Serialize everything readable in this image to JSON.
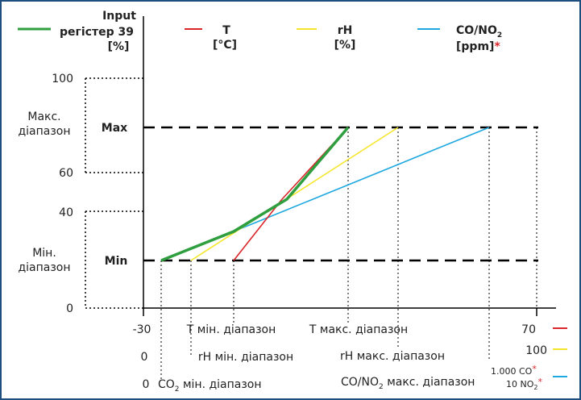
{
  "legend": {
    "input": {
      "line1": "Input",
      "line2": "регістер 39",
      "line3": "[%]"
    },
    "t": {
      "line1": "T",
      "line2": "[°C]"
    },
    "rh": {
      "line1": "rH",
      "line2": "[%]"
    },
    "co_no2": {
      "line1_main": "CO/NO",
      "line1_sub": "2",
      "line2_main": "[ppm]",
      "line2_star": "*"
    }
  },
  "y_axis": {
    "tick_100": "100",
    "tick_60": "60",
    "tick_40": "40",
    "tick_0": "0",
    "max_range_line1": "Макс.",
    "max_range_line2": "діапазон",
    "min_range_line1": "Мін.",
    "min_range_line2": "діапазон",
    "max_label": "Max",
    "min_label": "Min"
  },
  "x_axis": {
    "row1_left": "-30",
    "row1_mid1": "T мін. діапазон",
    "row1_mid2": "T макс. діапазон",
    "row1_right": "70",
    "row2_left": "0",
    "row2_mid1": "rH мін. діапазон",
    "row2_mid2": "rH макс. діапазон",
    "row2_right": "100",
    "row3_left": "0",
    "row3_mid1_main": "CO",
    "row3_mid1_sub": "2",
    "row3_mid1_rest": " мін. діапазон",
    "row3_mid2_main": "CO/NO",
    "row3_mid2_sub": "2",
    "row3_mid2_rest": " макс. діапазон",
    "row3_right_l1": "1.000 CO",
    "row3_right_l2_main": "10 NO",
    "row3_right_l2_sub": "2",
    "star": "*"
  },
  "colors": {
    "input": "#2e9e3e",
    "t": "#d9262a",
    "rh": "#f5e62c",
    "co_no2": "#1ea8e0",
    "star": "#d9262a",
    "frame": "#1c4e7e"
  }
}
